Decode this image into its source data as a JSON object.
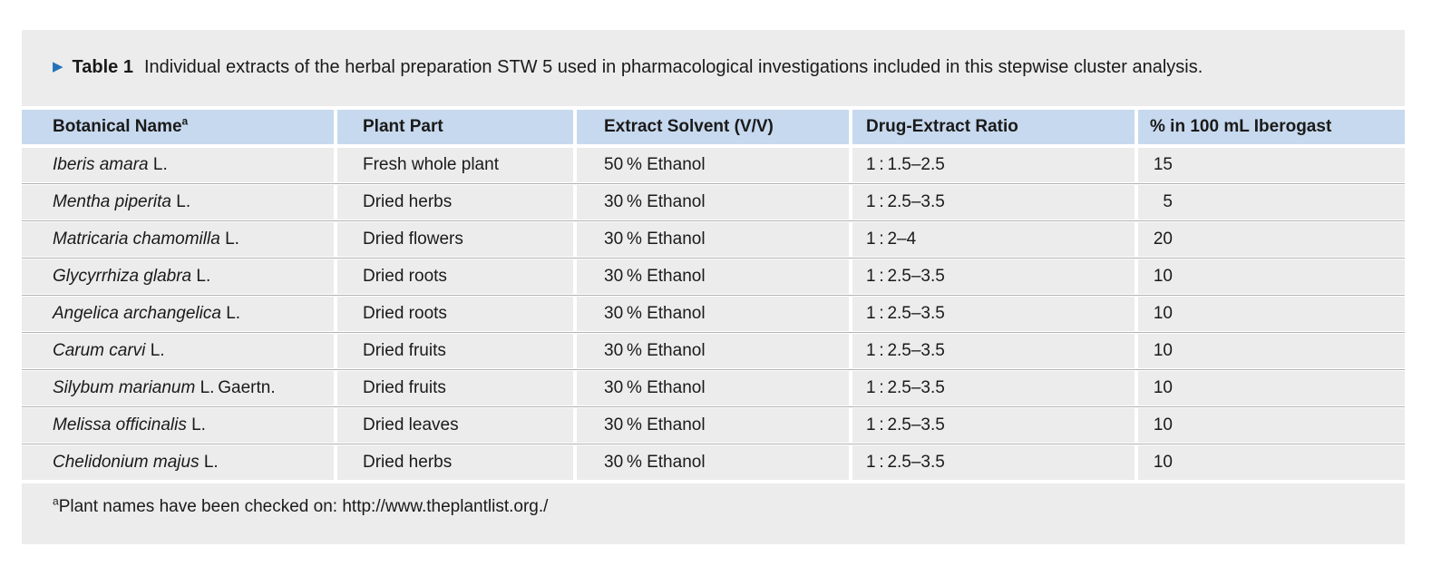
{
  "caption": {
    "marker_icon": "▶",
    "label": "Table 1",
    "text": "Individual extracts of the herbal preparation STW 5 used in pharmacological investigations included in this stepwise cluster analysis."
  },
  "table": {
    "columns": [
      {
        "label": "Botanical Name",
        "sup": "a"
      },
      {
        "label": "Plant Part"
      },
      {
        "label": "Extract Solvent (V/V)"
      },
      {
        "label": "Drug-Extract Ratio"
      },
      {
        "label": "% in 100 mL Iberogast"
      }
    ],
    "rows": [
      {
        "botanical_italic": "Iberis amara",
        "botanical_roman": "L.",
        "plant_part": "Fresh whole plant",
        "solvent": "50 % Ethanol",
        "ratio": "1 : 1.5–2.5",
        "percent": "15"
      },
      {
        "botanical_italic": "Mentha piperita",
        "botanical_roman": "L.",
        "plant_part": "Dried herbs",
        "solvent": "30 % Ethanol",
        "ratio": "1 : 2.5–3.5",
        "percent": "5"
      },
      {
        "botanical_italic": "Matricaria chamomilla",
        "botanical_roman": "L.",
        "plant_part": "Dried flowers",
        "solvent": "30 % Ethanol",
        "ratio": "1 : 2–4",
        "percent": "20"
      },
      {
        "botanical_italic": "Glycyrrhiza glabra",
        "botanical_roman": "L.",
        "plant_part": "Dried roots",
        "solvent": "30 % Ethanol",
        "ratio": "1 : 2.5–3.5",
        "percent": "10"
      },
      {
        "botanical_italic": "Angelica archangelica",
        "botanical_roman": "L.",
        "plant_part": "Dried roots",
        "solvent": "30 % Ethanol",
        "ratio": "1 : 2.5–3.5",
        "percent": "10"
      },
      {
        "botanical_italic": "Carum carvi",
        "botanical_roman": "L.",
        "plant_part": "Dried fruits",
        "solvent": "30 % Ethanol",
        "ratio": "1 : 2.5–3.5",
        "percent": "10"
      },
      {
        "botanical_italic": "Silybum marianum",
        "botanical_roman": "L. Gaertn.",
        "plant_part": "Dried fruits",
        "solvent": "30 % Ethanol",
        "ratio": "1 : 2.5–3.5",
        "percent": "10"
      },
      {
        "botanical_italic": "Melissa officinalis",
        "botanical_roman": "L.",
        "plant_part": "Dried leaves",
        "solvent": "30 % Ethanol",
        "ratio": "1 : 2.5–3.5",
        "percent": "10"
      },
      {
        "botanical_italic": "Chelidonium majus",
        "botanical_roman": "L.",
        "plant_part": "Dried herbs",
        "solvent": "30 % Ethanol",
        "ratio": "1 : 2.5–3.5",
        "percent": "10"
      }
    ]
  },
  "footnote": {
    "sup": "a",
    "text": "Plant names have been checked on: http://www.theplantlist.org./"
  },
  "colors": {
    "panel_background": "#ececec",
    "header_background": "#c7d9ee",
    "row_background": "#ececec",
    "row_divider": "#b2b2b2",
    "caption_marker": "#2372b9",
    "text": "#1a1a1a"
  }
}
